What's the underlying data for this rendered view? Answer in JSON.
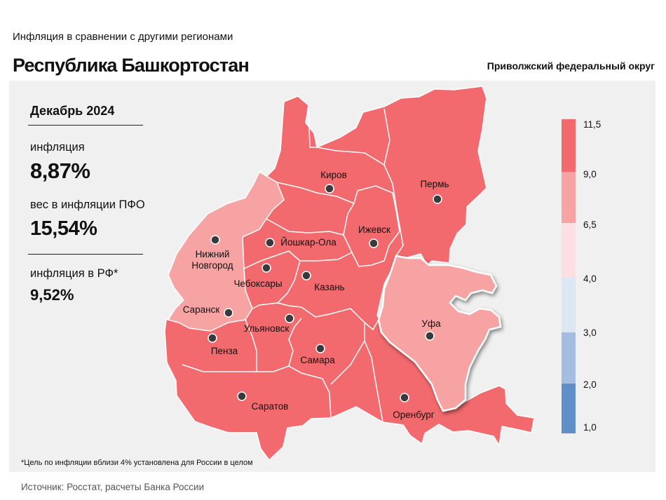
{
  "header": {
    "subtitle": "Инфляция в сравнении с другими регионами",
    "title": "Республика Башкортостан",
    "district": "Приволжский федеральный округ"
  },
  "stats": {
    "period": "Декабрь 2024",
    "inflation_label": "инфляция",
    "inflation_value": "8,87%",
    "weight_label": "вес в инфляции ПФО",
    "weight_value": "15,54%",
    "rf_label": "инфляция в РФ*",
    "rf_value": "9,52%"
  },
  "legend": {
    "ticks": [
      "11,5",
      "9,0",
      "6,5",
      "4,0",
      "3,0",
      "2,0",
      "1,0"
    ],
    "colors": [
      "#f26a6e",
      "#f7a3a4",
      "#fcdfe2",
      "#dde6f3",
      "#a4bde0",
      "#5f8ec9"
    ]
  },
  "map": {
    "highlight_region": "Уфа",
    "cities": [
      {
        "name": "Киров",
        "color": "#f26a6e"
      },
      {
        "name": "Пермь",
        "color": "#f26a6e"
      },
      {
        "name": "Ижевск",
        "color": "#f26a6e"
      },
      {
        "name": "Йошкар-Ола",
        "color": "#f26a6e"
      },
      {
        "name": "Нижний Новгород",
        "line1": "Нижний",
        "line2": "Новгород",
        "color": "#f7a3a4"
      },
      {
        "name": "Чебоксары",
        "color": "#f26a6e"
      },
      {
        "name": "Казань",
        "color": "#f26a6e"
      },
      {
        "name": "Саранск",
        "color": "#f7a3a4"
      },
      {
        "name": "Ульяновск",
        "color": "#f26a6e"
      },
      {
        "name": "Уфа",
        "color": "#f7a3a4"
      },
      {
        "name": "Пенза",
        "color": "#f26a6e"
      },
      {
        "name": "Самара",
        "color": "#f26a6e"
      },
      {
        "name": "Саратов",
        "color": "#f26a6e"
      },
      {
        "name": "Оренбург",
        "color": "#f26a6e"
      }
    ]
  },
  "footnote": "*Цель по инфляции вблизи 4% установлена для России в целом",
  "source": "Источник: Росстат, расчеты Банка России"
}
